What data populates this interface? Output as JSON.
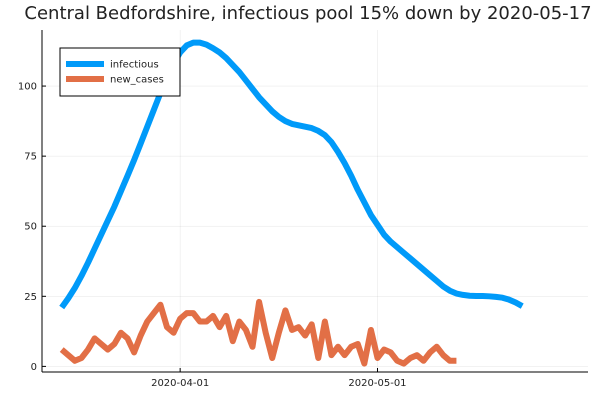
{
  "chart_data": {
    "type": "line",
    "title": "Central Bedfordshire, infectious pool 15% down by 2020-05-17",
    "xlabel": "",
    "ylabel": "",
    "x_start": "2020-03-14",
    "x_end": "2020-05-31",
    "xlim": [
      "2020-03-11",
      "2020-06-02"
    ],
    "ylim": [
      -2,
      120
    ],
    "x_ticks": [
      {
        "date": "2020-04-01",
        "label": "2020-04-01"
      },
      {
        "date": "2020-05-01",
        "label": "2020-05-01"
      }
    ],
    "y_ticks": [
      0,
      25,
      50,
      75,
      100
    ],
    "grid": true,
    "legend": "top-left",
    "series": [
      {
        "name": "infectious",
        "color": "#009af9",
        "values": [
          21,
          24.3,
          28,
          32.3,
          37,
          42,
          47,
          52,
          57,
          62.5,
          68,
          73.6,
          79.5,
          85.5,
          91.5,
          97.5,
          103,
          108,
          112,
          114.5,
          115.5,
          115.5,
          114.8,
          113.5,
          112,
          110,
          107.5,
          105,
          102,
          99,
          96,
          93.5,
          91,
          89,
          87.5,
          86.5,
          86,
          85.5,
          85,
          84,
          82.5,
          80,
          76.5,
          72.5,
          68,
          63,
          58.5,
          54,
          50.5,
          47,
          44.5,
          42.5,
          40.5,
          38.5,
          36.5,
          34.5,
          32.5,
          30.5,
          28.5,
          27,
          26,
          25.5,
          25.2,
          25.1,
          25.1,
          25,
          24.8,
          24.5,
          23.8,
          22.8,
          21.5
        ]
      },
      {
        "name": "new_cases",
        "color": "#e26f46",
        "values": [
          6,
          4,
          2,
          3,
          6,
          10,
          8,
          6,
          8,
          12,
          10,
          5,
          11,
          16,
          19,
          22,
          14,
          12,
          17,
          19,
          19,
          16,
          16,
          18,
          14,
          18,
          9,
          16,
          13,
          7,
          23,
          12,
          3,
          12,
          20,
          13,
          14,
          11,
          15,
          3,
          16,
          4,
          7,
          4,
          7,
          8,
          1,
          13,
          3,
          6,
          5,
          2,
          1,
          3,
          4,
          2,
          5,
          7,
          4,
          2,
          2
        ]
      }
    ]
  }
}
